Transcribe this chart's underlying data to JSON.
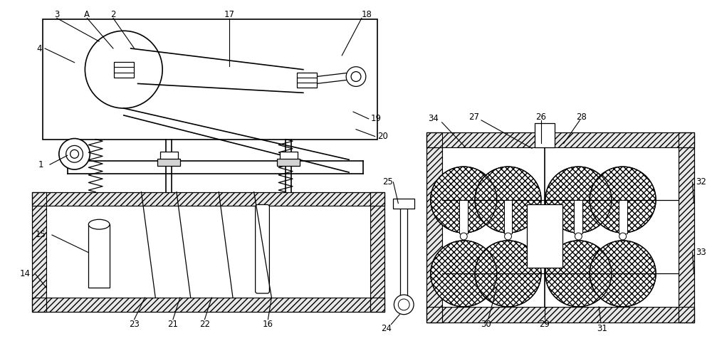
{
  "bg_color": "#ffffff",
  "line_color": "#000000",
  "fig_width": 10.0,
  "fig_height": 4.86
}
